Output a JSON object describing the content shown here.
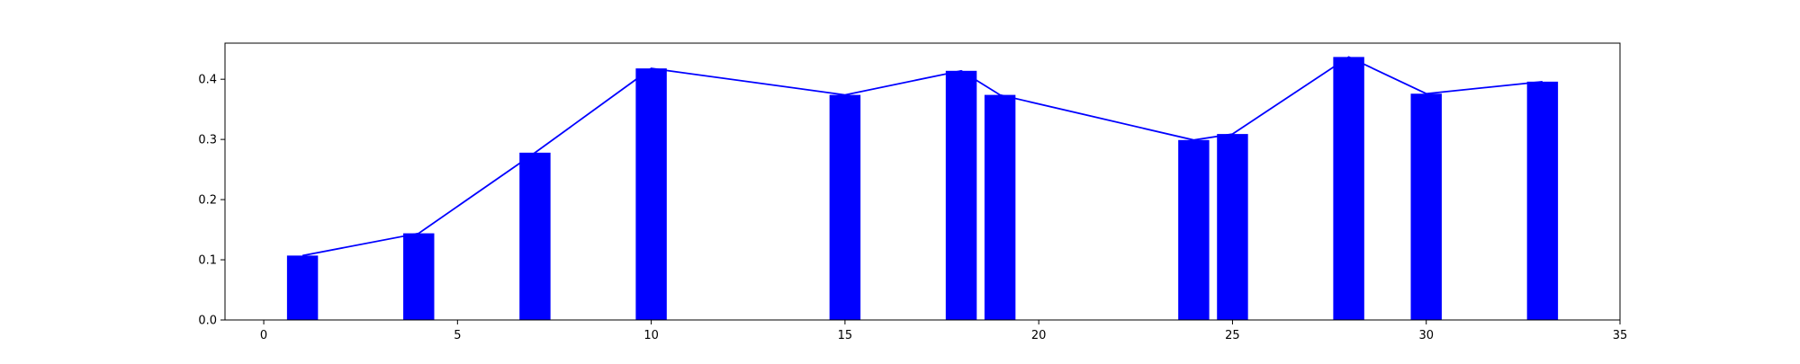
{
  "chart_data": {
    "type": "bar",
    "title": "",
    "xlabel": "",
    "ylabel": "",
    "xlim": [
      -1,
      35
    ],
    "ylim": [
      0,
      0.46
    ],
    "grid": false,
    "bar_width": 0.8,
    "x_ticks": [
      0,
      5,
      10,
      15,
      20,
      25,
      30,
      35
    ],
    "y_ticks": [
      0.0,
      0.1,
      0.2,
      0.3,
      0.4
    ],
    "x_tick_labels": [
      "0",
      "5",
      "10",
      "15",
      "20",
      "25",
      "30",
      "35"
    ],
    "y_tick_labels": [
      "0.0",
      "0.1",
      "0.2",
      "0.3",
      "0.4"
    ],
    "x": [
      1,
      4,
      7,
      10,
      15,
      18,
      19,
      24,
      25,
      28,
      30,
      33
    ],
    "values": [
      0.107,
      0.144,
      0.278,
      0.418,
      0.374,
      0.414,
      0.374,
      0.299,
      0.309,
      0.437,
      0.376,
      0.396
    ],
    "series": [
      {
        "kind": "bar",
        "color": "#0000ff"
      },
      {
        "kind": "line",
        "color": "#0000ff"
      }
    ]
  }
}
